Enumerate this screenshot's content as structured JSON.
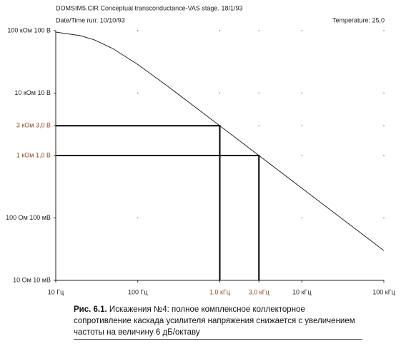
{
  "chart_data": {
    "type": "line",
    "header": "DOMSIM5.CIR Conceptual transconductance-VAS stage.   18/1/93",
    "date_line": "Date/Time run: 10/10/93",
    "temperature": "Temperature: 25,0",
    "caption_label": "Рис. 6.1.",
    "caption": "Искажения №4: полное комплексное коллекторное сопротивление каскада усилителя напряжения снижается с увеличением частоты на величину 6 дБ/октаву",
    "x": [
      10,
      20,
      30,
      50,
      100,
      200,
      300,
      500,
      1000,
      2000,
      3000,
      5000,
      10000,
      20000,
      50000,
      100000
    ],
    "series": [
      {
        "color": "#222222",
        "values": [
          94868,
          83205,
          70711,
          51450,
          28735,
          14834,
          9950,
          5991,
          2999,
          1500,
          1000,
          600,
          300,
          150,
          60,
          30
        ]
      }
    ],
    "markers": [
      {
        "x": 1000,
        "y": 3000
      },
      {
        "x": 3000,
        "y": 1000
      }
    ],
    "xlim": [
      10,
      100000
    ],
    "ylim": [
      10,
      100000
    ],
    "xlog": true,
    "ylog": true,
    "grid": true,
    "xticks": [
      {
        "value": 10,
        "label": "10 Гц"
      },
      {
        "value": 100,
        "label": "100 Гц"
      },
      {
        "value": 1000,
        "label": "1,0 кГц"
      },
      {
        "value": 3000,
        "label": "3,0 кГц"
      },
      {
        "value": 10000,
        "label": "10 кГц"
      },
      {
        "value": 100000,
        "label": "100 кГц"
      }
    ],
    "yticks": [
      {
        "value": 10,
        "label": "10 Ом  10 мВ"
      },
      {
        "value": 100,
        "label": "100 Ом  100 мВ"
      },
      {
        "value": 1000,
        "label": "1 кОм  1,0 В"
      },
      {
        "value": 3000,
        "label": "3 кОм  3,0 В"
      },
      {
        "value": 10000,
        "label": "10 кОм  10 В"
      },
      {
        "value": 100000,
        "label": "100 кОм  100 В"
      }
    ]
  }
}
